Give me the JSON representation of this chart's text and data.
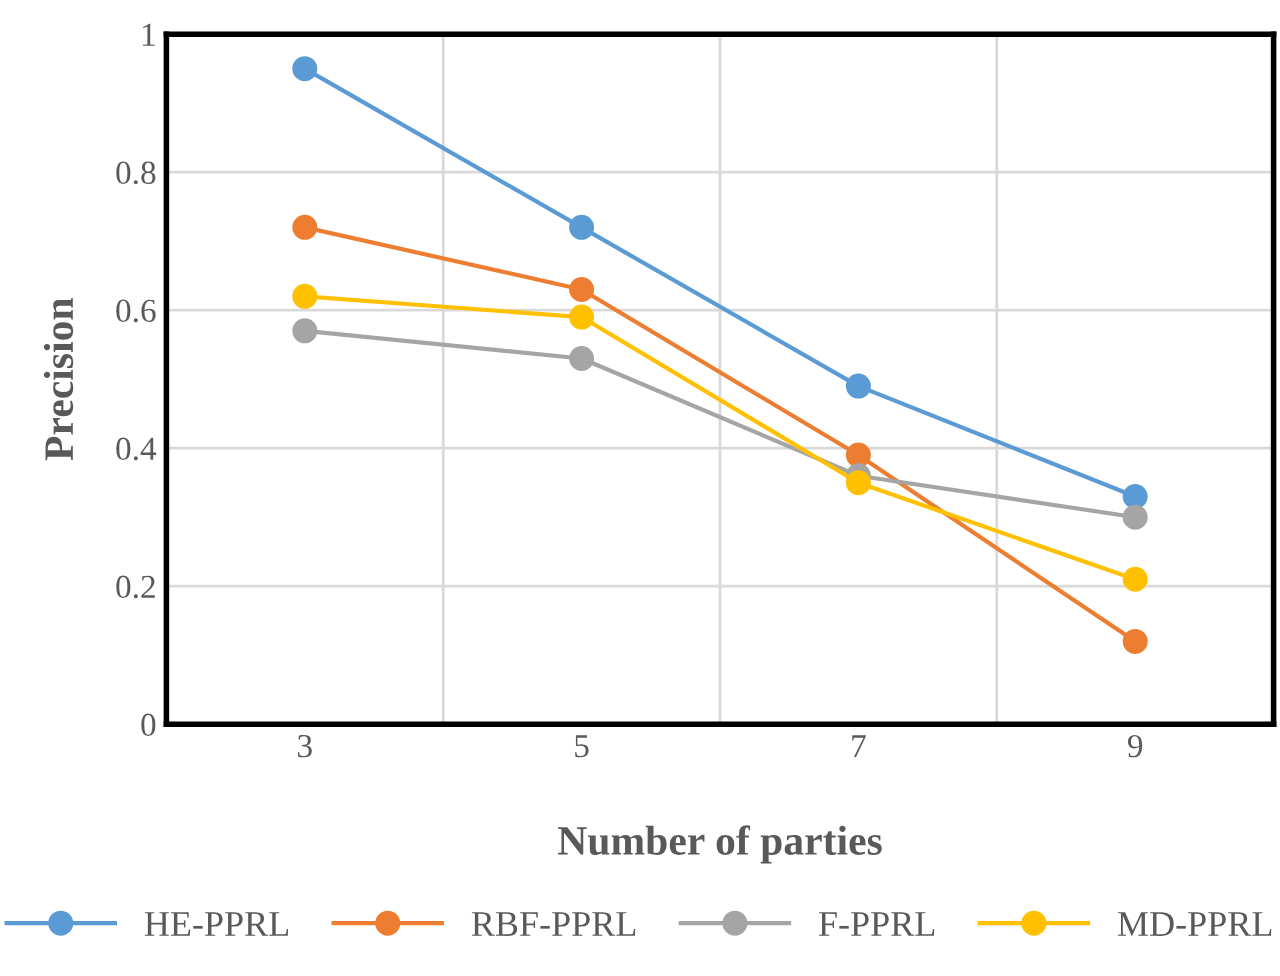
{
  "chart_data": {
    "type": "line",
    "xlabel": "Number of parties",
    "ylabel": "Precision",
    "categories": [
      "3",
      "5",
      "7",
      "9"
    ],
    "series": [
      {
        "name": "HE-PPRL",
        "color": "#5b9bd5",
        "values": [
          0.95,
          0.72,
          0.49,
          0.33
        ]
      },
      {
        "name": "RBF-PPRL",
        "color": "#ed7d31",
        "values": [
          0.72,
          0.63,
          0.39,
          0.12
        ]
      },
      {
        "name": "F-PPRL",
        "color": "#a5a5a5",
        "values": [
          0.57,
          0.53,
          0.36,
          0.3
        ]
      },
      {
        "name": "MD-PPRL",
        "color": "#ffc000",
        "values": [
          0.62,
          0.59,
          0.35,
          0.21
        ]
      }
    ],
    "ylim": [
      0,
      1
    ],
    "yticks": [
      {
        "value": 0,
        "label": "0"
      },
      0.2,
      0.4,
      0.6,
      0.8,
      {
        "value": 1,
        "label": "1"
      }
    ],
    "grid": true,
    "legend": "bottom",
    "marker": "circle",
    "line_style": "solid"
  }
}
